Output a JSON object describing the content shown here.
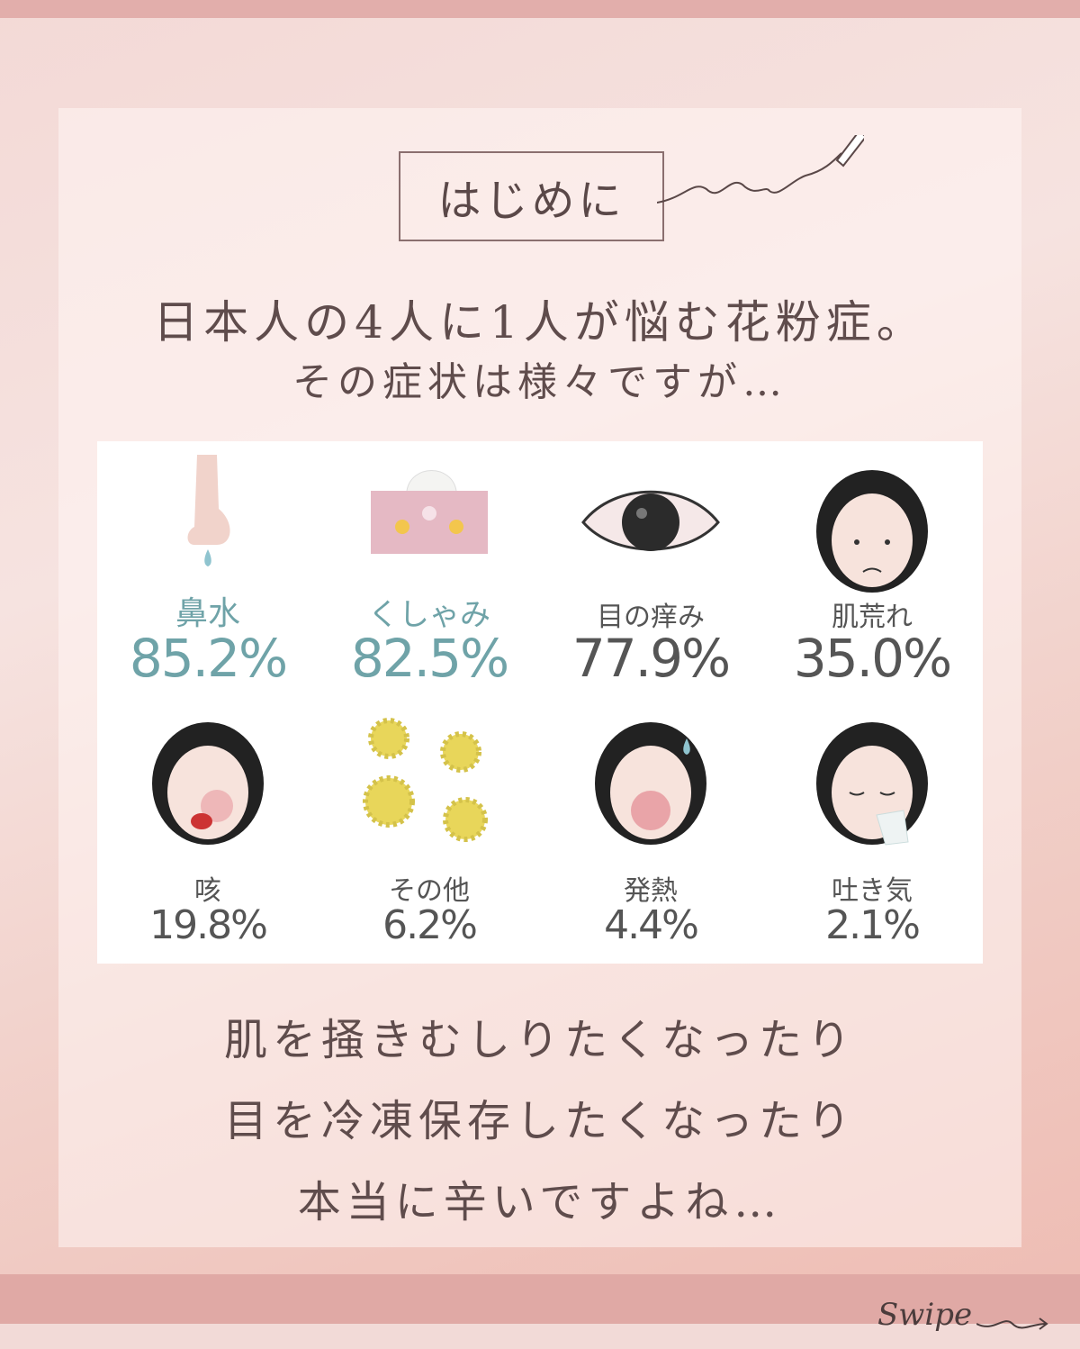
{
  "header": {
    "title": "はじめに"
  },
  "intro": {
    "line1": "日本人の4人に1人が悩む花粉症。",
    "line2": "その症状は様々ですが…"
  },
  "symptoms": [
    {
      "label": "鼻水",
      "percent": "85.2%",
      "icon": "nose-icon",
      "color": "#6fa3a8"
    },
    {
      "label": "くしゃみ",
      "percent": "82.5%",
      "icon": "tissue-box-icon",
      "color": "#6fa3a8"
    },
    {
      "label": "目の痒み",
      "percent": "77.9%",
      "icon": "eye-icon",
      "color": "#555555"
    },
    {
      "label": "肌荒れ",
      "percent": "35.0%",
      "icon": "troubled-face-icon",
      "color": "#555555"
    },
    {
      "label": "咳",
      "percent": "19.8%",
      "icon": "coughing-face-icon",
      "color": "#555555"
    },
    {
      "label": "その他",
      "percent": "6.2%",
      "icon": "pollen-icon",
      "color": "#555555"
    },
    {
      "label": "発熱",
      "percent": "4.4%",
      "icon": "fever-face-icon",
      "color": "#555555"
    },
    {
      "label": "吐き気",
      "percent": "2.1%",
      "icon": "nausea-face-icon",
      "color": "#555555"
    }
  ],
  "closing": {
    "line1": "肌を掻きむしりたくなったり",
    "line2": "目を冷凍保存したくなったり",
    "line3": "本当に辛いですよね…"
  },
  "footer": {
    "swipe": "Swipe"
  }
}
